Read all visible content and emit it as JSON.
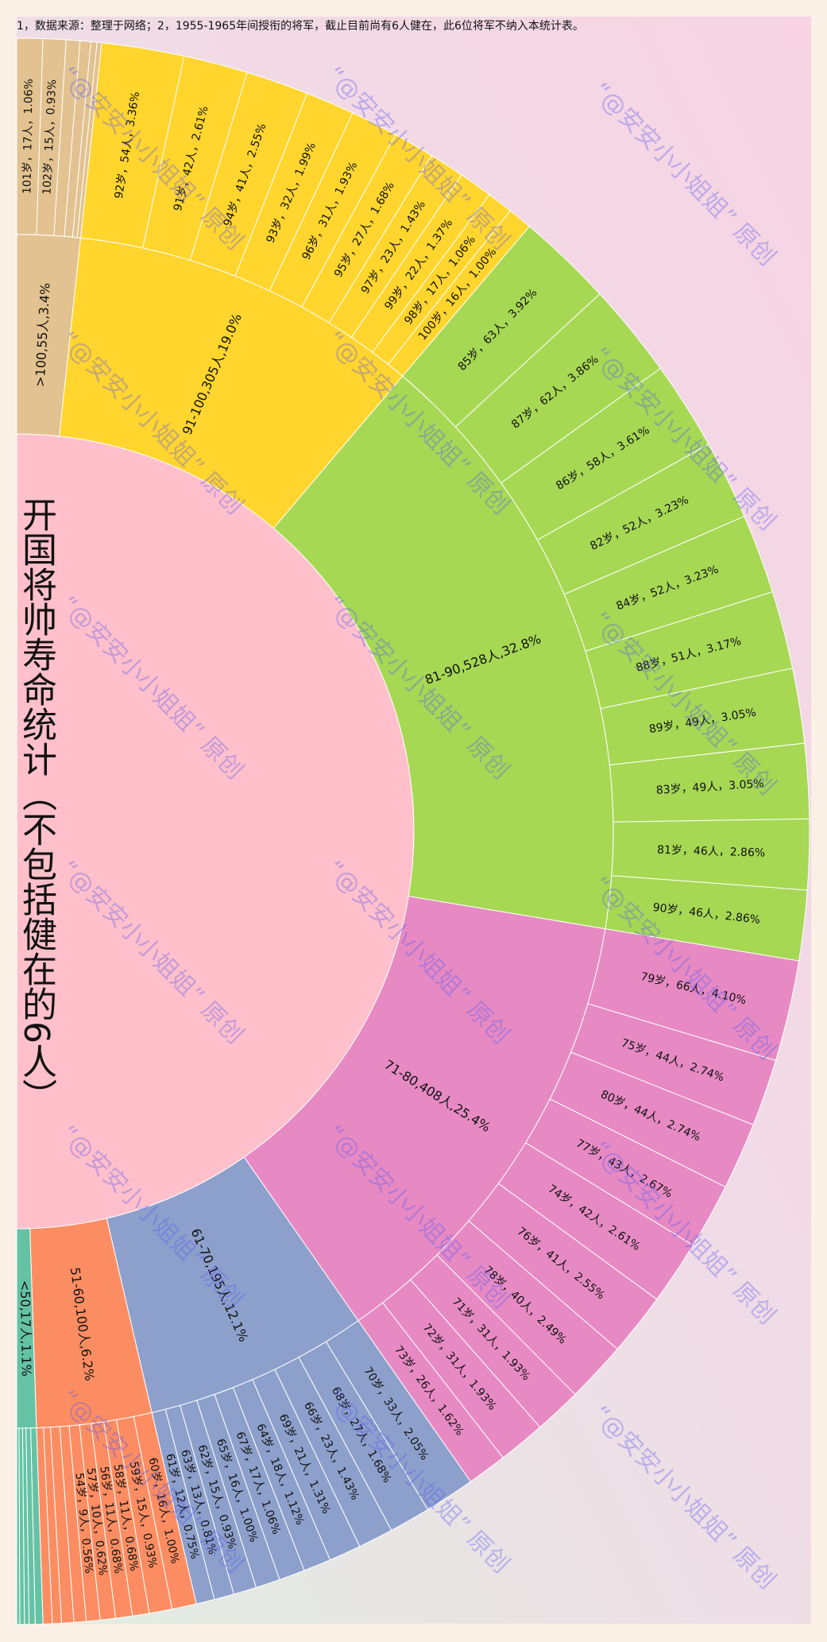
{
  "note": "1，数据来源：整理于网络；2，1955-1965年间授衔的将军，截止目前尚有6人健在，此6位将军不纳入本统计表。",
  "title": "开国将帅寿命统计（不包括健在的6人）",
  "watermark": "“@安安小小姐姐” 原创",
  "chart_data": {
    "type": "sunburst",
    "inner_color": "#ffc0cb",
    "groups": [
      {
        "name": ">100,55人,3.4%",
        "value": 55,
        "color": "#e2c290",
        "children": [
          {
            "name": "101岁，17人，1.06%",
            "value": 17
          },
          {
            "name": "102岁，15人，0.93%",
            "value": 15
          },
          {
            "name": null,
            "value": 9
          },
          {
            "name": null,
            "value": 7
          },
          {
            "name": null,
            "value": 4
          },
          {
            "name": null,
            "value": 3
          }
        ]
      },
      {
        "name": "91-100,305人,19.0%",
        "value": 305,
        "color": "#ffd52e",
        "children": [
          {
            "name": "92岁，54人，3.36%",
            "value": 54
          },
          {
            "name": "91岁，42人，2.61%",
            "value": 42
          },
          {
            "name": "94岁，41人，2.55%",
            "value": 41
          },
          {
            "name": "93岁，32人，1.99%",
            "value": 32
          },
          {
            "name": "96岁，31人，1.93%",
            "value": 31
          },
          {
            "name": "95岁，27人，1.68%",
            "value": 27
          },
          {
            "name": "97岁，23人，1.43%",
            "value": 23
          },
          {
            "name": "99岁，22人，1.37%",
            "value": 22
          },
          {
            "name": "98岁，17人，1.06%",
            "value": 17
          },
          {
            "name": "100岁，16人，1.00%",
            "value": 16
          }
        ]
      },
      {
        "name": "81-90,528人,32.8%",
        "value": 528,
        "color": "#a6d854",
        "children": [
          {
            "name": "85岁，63人，3.92%",
            "value": 63
          },
          {
            "name": "87岁，62人，3.86%",
            "value": 62
          },
          {
            "name": "86岁，58人，3.61%",
            "value": 58
          },
          {
            "name": "82岁，52人，3.23%",
            "value": 52
          },
          {
            "name": "84岁，52人，3.23%",
            "value": 52
          },
          {
            "name": "88岁，51人，3.17%",
            "value": 51
          },
          {
            "name": "89岁，49人，3.05%",
            "value": 49
          },
          {
            "name": "83岁，49人，3.05%",
            "value": 49
          },
          {
            "name": "81岁，46人，2.86%",
            "value": 46
          },
          {
            "name": "90岁，46人，2.86%",
            "value": 46
          }
        ]
      },
      {
        "name": "71-80,408人,25.4%",
        "value": 408,
        "color": "#e78ac3",
        "children": [
          {
            "name": "79岁，66人，4.10%",
            "value": 66
          },
          {
            "name": "75岁，44人，2.74%",
            "value": 44
          },
          {
            "name": "80岁，44人，2.74%",
            "value": 44
          },
          {
            "name": "77岁，43人，2.67%",
            "value": 43
          },
          {
            "name": "74岁，42人，2.61%",
            "value": 42
          },
          {
            "name": "76岁，41人，2.55%",
            "value": 41
          },
          {
            "name": "78岁，40人，2.49%",
            "value": 40
          },
          {
            "name": "71岁，31人，1.93%",
            "value": 31
          },
          {
            "name": "72岁，31人，1.93%",
            "value": 31
          },
          {
            "name": "73岁，26人，1.62%",
            "value": 26
          }
        ]
      },
      {
        "name": "61-70,195人,12.1%",
        "value": 195,
        "color": "#8da0cb",
        "children": [
          {
            "name": "70岁，33人，2.05%",
            "value": 33
          },
          {
            "name": "68岁，27人，1.68%",
            "value": 27
          },
          {
            "name": "66岁，23人，1.43%",
            "value": 23
          },
          {
            "name": "69岁，21人，1.31%",
            "value": 21
          },
          {
            "name": "64岁，18人，1.12%",
            "value": 18
          },
          {
            "name": "67岁，17人，1.06%",
            "value": 17
          },
          {
            "name": "65岁，16人，1.00%",
            "value": 16
          },
          {
            "name": "62岁，15人，0.93%",
            "value": 15
          },
          {
            "name": "63岁，13人，0.81%",
            "value": 13
          },
          {
            "name": "61岁，12人，0.75%",
            "value": 12
          }
        ]
      },
      {
        "name": "51-60,100人,6.2%",
        "value": 100,
        "color": "#fc8d62",
        "children": [
          {
            "name": "60岁，16人，1.00%",
            "value": 16
          },
          {
            "name": "59岁，15人，0.93%",
            "value": 15
          },
          {
            "name": "58岁，11人，0.68%",
            "value": 11
          },
          {
            "name": "56岁，11人，0.68%",
            "value": 11
          },
          {
            "name": "57岁，10人，0.62%",
            "value": 10
          },
          {
            "name": "54岁，9人，0.56%",
            "value": 9
          },
          {
            "name": null,
            "value": 8
          },
          {
            "name": null,
            "value": 8
          },
          {
            "name": null,
            "value": 6
          },
          {
            "name": null,
            "value": 6
          }
        ]
      },
      {
        "name": "<50,17人,1.1%",
        "value": 17,
        "color": "#66c2a5",
        "children": [
          {
            "name": null,
            "value": 5
          },
          {
            "name": null,
            "value": 4
          },
          {
            "name": null,
            "value": 3
          },
          {
            "name": null,
            "value": 3
          },
          {
            "name": null,
            "value": 2
          }
        ]
      }
    ]
  }
}
